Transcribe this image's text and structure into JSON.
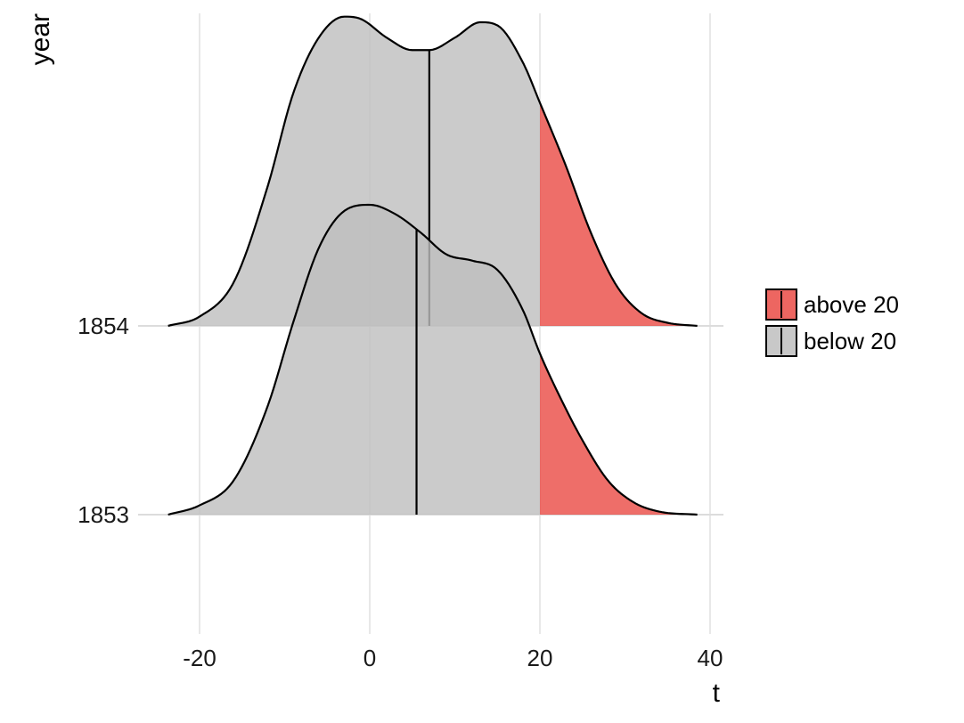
{
  "chart_data": {
    "type": "ridgeline-density",
    "xlabel": "t",
    "ylabel": "year",
    "xlim": [
      -25,
      41
    ],
    "x_ticks": [
      -20,
      0,
      20,
      40
    ],
    "x_tick_labels": [
      "-20",
      "0",
      "20",
      "40"
    ],
    "grid": "vertical major gridlines",
    "fill_threshold": 20,
    "legend": {
      "placement": "right",
      "entries": [
        {
          "label": "above 20",
          "color": "#e8403a"
        },
        {
          "label": "below 20",
          "color": "#bebebe"
        }
      ]
    },
    "series": [
      {
        "name": "1853",
        "label": "1853",
        "median": 5.5,
        "x": [
          -23.7,
          -20,
          -16,
          -12,
          -9,
          -6,
          -3,
          0,
          3,
          6,
          9,
          12,
          15,
          18,
          20,
          22,
          25,
          28,
          31,
          34,
          38.5
        ],
        "density": [
          0.0,
          0.03,
          0.11,
          0.35,
          0.62,
          0.86,
          0.98,
          1.0,
          0.97,
          0.91,
          0.84,
          0.82,
          0.79,
          0.66,
          0.52,
          0.4,
          0.24,
          0.11,
          0.04,
          0.01,
          0.0
        ]
      },
      {
        "name": "1854",
        "label": "1854",
        "median": 7,
        "x": [
          -23.7,
          -20,
          -16,
          -12,
          -9,
          -6,
          -3,
          -1,
          2,
          5,
          7,
          10,
          13,
          15,
          18,
          20,
          23,
          26,
          29,
          32,
          35,
          38.5
        ],
        "density": [
          0.0,
          0.03,
          0.14,
          0.45,
          0.75,
          0.93,
          0.998,
          0.99,
          0.93,
          0.89,
          0.89,
          0.93,
          0.98,
          0.97,
          0.85,
          0.72,
          0.52,
          0.3,
          0.13,
          0.04,
          0.01,
          0.0
        ]
      }
    ]
  }
}
